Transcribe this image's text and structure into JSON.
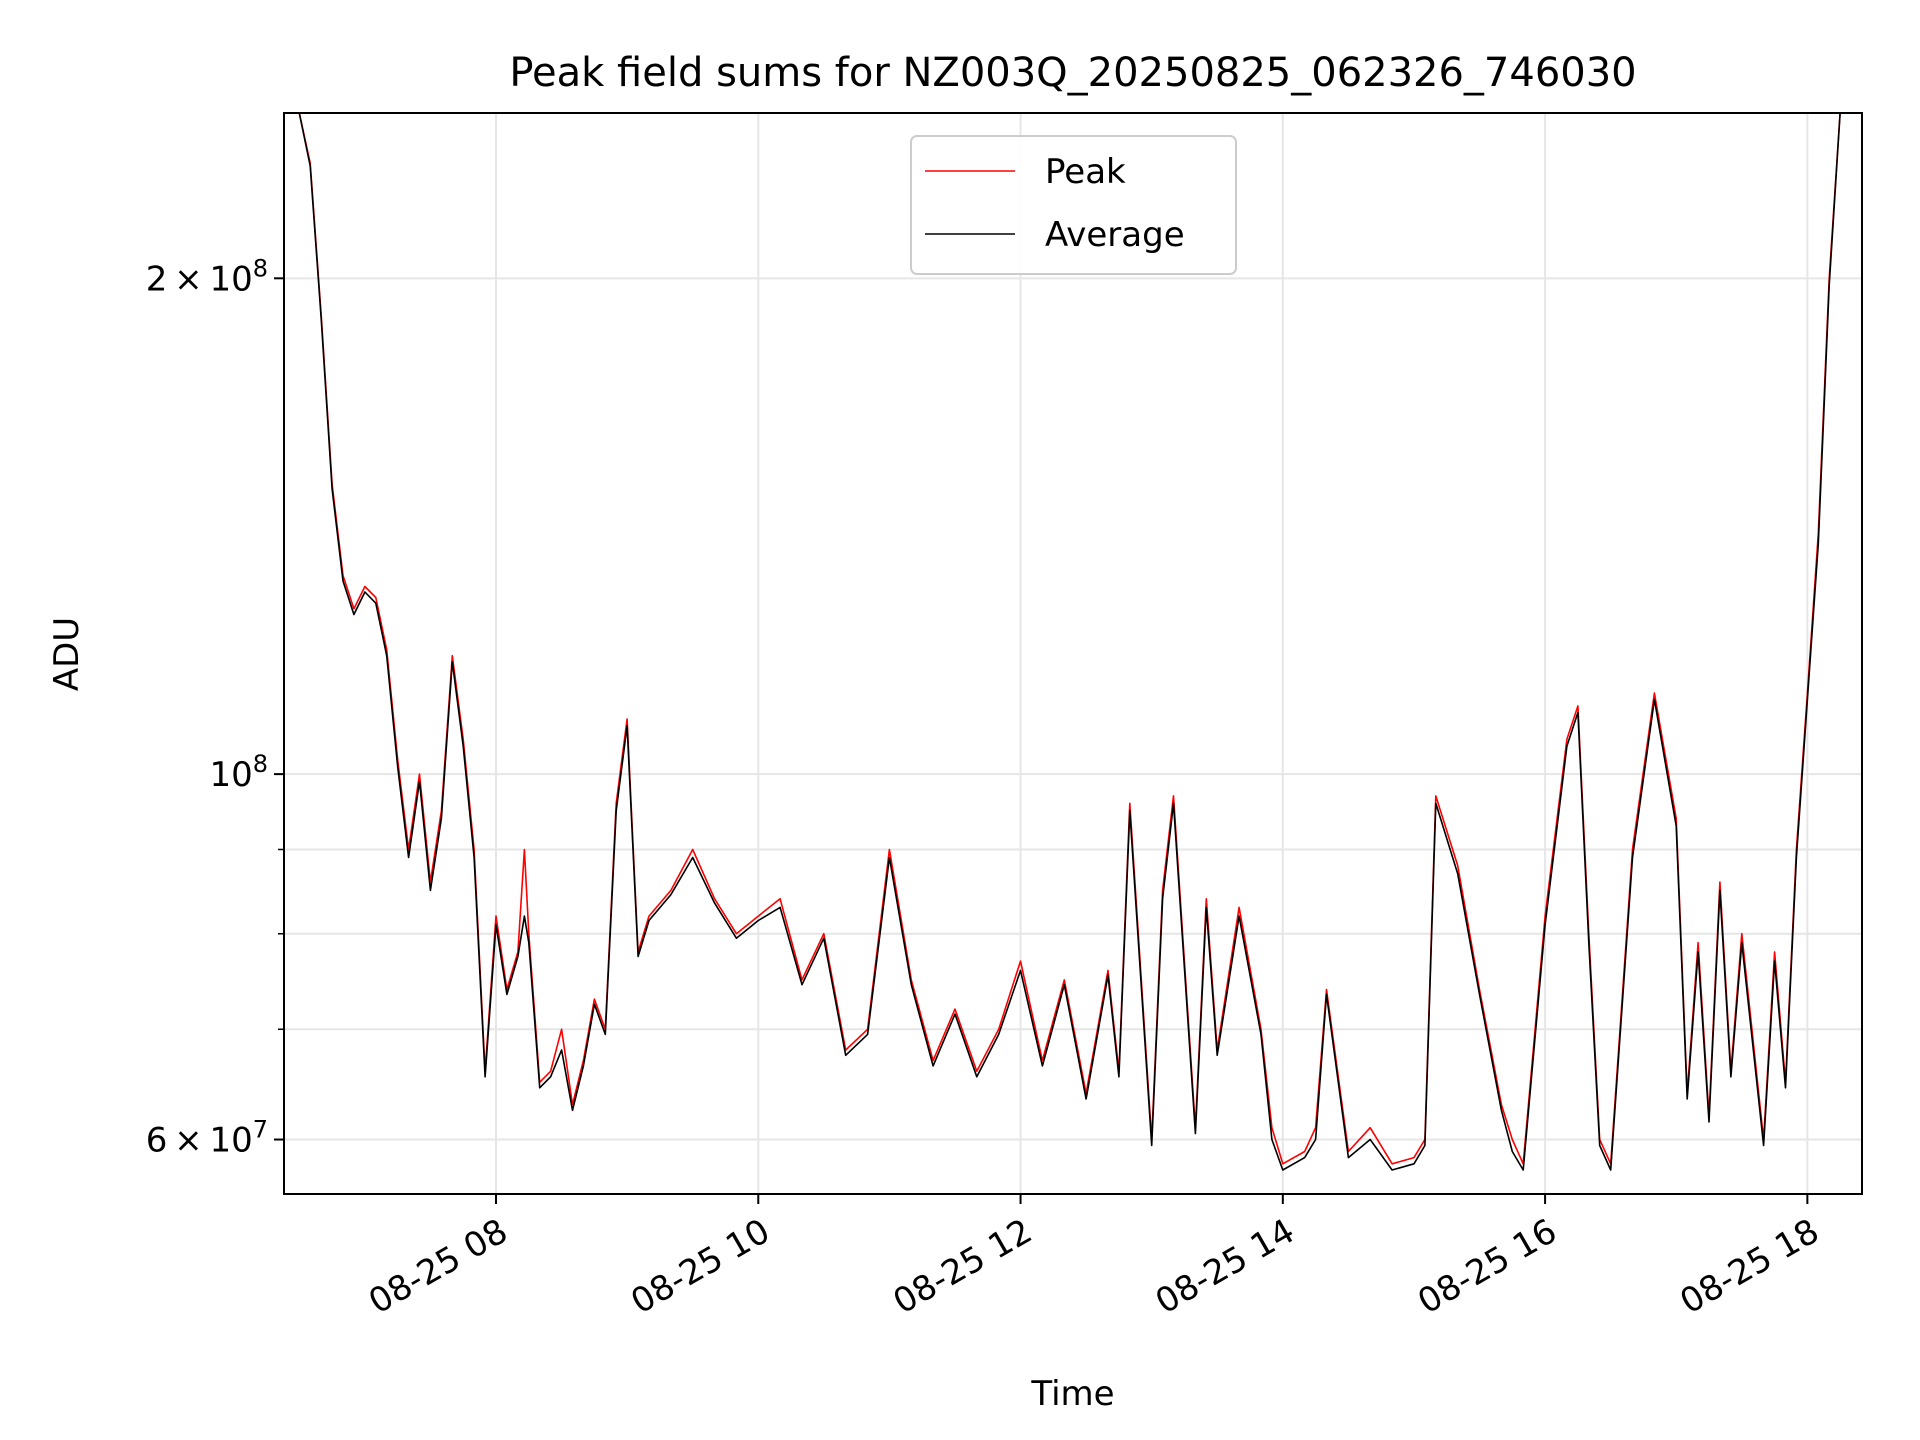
{
  "chart_data": {
    "type": "line",
    "title": "Peak field sums for NZ003Q_20250825_062326_746030",
    "xlabel": "Time",
    "ylabel": "ADU",
    "y_scale": "log",
    "ylim": [
      55600000,
      252000000
    ],
    "xlim": [
      "2025-08-25 06:23",
      "2025-08-25 18:25"
    ],
    "grid": true,
    "legend_position": "top-center",
    "x_ticks": [
      {
        "value": "2025-08-25 08:00",
        "label": "08-25 08"
      },
      {
        "value": "2025-08-25 10:00",
        "label": "08-25 10"
      },
      {
        "value": "2025-08-25 12:00",
        "label": "08-25 12"
      },
      {
        "value": "2025-08-25 14:00",
        "label": "08-25 14"
      },
      {
        "value": "2025-08-25 16:00",
        "label": "08-25 16"
      },
      {
        "value": "2025-08-25 18:00",
        "label": "08-25 18"
      }
    ],
    "y_major_ticks": [
      {
        "value": 60000000,
        "base": "6",
        "exp": "7"
      },
      {
        "value": 100000000,
        "base": "",
        "exp": "8"
      },
      {
        "value": 200000000,
        "base": "2",
        "exp": "8"
      }
    ],
    "y_minor_ticks": [
      70000000,
      80000000,
      90000000
    ],
    "series": [
      {
        "name": "Peak",
        "color": "#ff0000",
        "x": [
          "2025-08-25 06:30",
          "2025-08-25 06:35",
          "2025-08-25 06:40",
          "2025-08-25 06:45",
          "2025-08-25 06:50",
          "2025-08-25 06:55",
          "2025-08-25 07:00",
          "2025-08-25 07:05",
          "2025-08-25 07:10",
          "2025-08-25 07:15",
          "2025-08-25 07:20",
          "2025-08-25 07:25",
          "2025-08-25 07:30",
          "2025-08-25 07:35",
          "2025-08-25 07:40",
          "2025-08-25 07:45",
          "2025-08-25 07:50",
          "2025-08-25 07:55",
          "2025-08-25 08:00",
          "2025-08-25 08:05",
          "2025-08-25 08:10",
          "2025-08-25 08:13",
          "2025-08-25 08:15",
          "2025-08-25 08:20",
          "2025-08-25 08:25",
          "2025-08-25 08:30",
          "2025-08-25 08:35",
          "2025-08-25 08:40",
          "2025-08-25 08:45",
          "2025-08-25 08:50",
          "2025-08-25 08:55",
          "2025-08-25 09:00",
          "2025-08-25 09:05",
          "2025-08-25 09:10",
          "2025-08-25 09:20",
          "2025-08-25 09:30",
          "2025-08-25 09:40",
          "2025-08-25 09:50",
          "2025-08-25 10:00",
          "2025-08-25 10:10",
          "2025-08-25 10:20",
          "2025-08-25 10:30",
          "2025-08-25 10:40",
          "2025-08-25 10:50",
          "2025-08-25 11:00",
          "2025-08-25 11:10",
          "2025-08-25 11:20",
          "2025-08-25 11:30",
          "2025-08-25 11:40",
          "2025-08-25 11:50",
          "2025-08-25 12:00",
          "2025-08-25 12:10",
          "2025-08-25 12:20",
          "2025-08-25 12:30",
          "2025-08-25 12:40",
          "2025-08-25 12:45",
          "2025-08-25 12:50",
          "2025-08-25 13:00",
          "2025-08-25 13:05",
          "2025-08-25 13:10",
          "2025-08-25 13:20",
          "2025-08-25 13:25",
          "2025-08-25 13:30",
          "2025-08-25 13:40",
          "2025-08-25 13:50",
          "2025-08-25 13:55",
          "2025-08-25 14:00",
          "2025-08-25 14:10",
          "2025-08-25 14:15",
          "2025-08-25 14:20",
          "2025-08-25 14:30",
          "2025-08-25 14:40",
          "2025-08-25 14:50",
          "2025-08-25 15:00",
          "2025-08-25 15:05",
          "2025-08-25 15:10",
          "2025-08-25 15:20",
          "2025-08-25 15:30",
          "2025-08-25 15:40",
          "2025-08-25 15:45",
          "2025-08-25 15:50",
          "2025-08-25 16:00",
          "2025-08-25 16:10",
          "2025-08-25 16:15",
          "2025-08-25 16:20",
          "2025-08-25 16:25",
          "2025-08-25 16:30",
          "2025-08-25 16:40",
          "2025-08-25 16:50",
          "2025-08-25 17:00",
          "2025-08-25 17:05",
          "2025-08-25 17:10",
          "2025-08-25 17:15",
          "2025-08-25 17:20",
          "2025-08-25 17:25",
          "2025-08-25 17:30",
          "2025-08-25 17:40",
          "2025-08-25 17:45",
          "2025-08-25 17:50",
          "2025-08-25 17:55",
          "2025-08-25 18:00",
          "2025-08-25 18:05",
          "2025-08-25 18:10",
          "2025-08-25 18:15"
        ],
        "y": [
          252000000,
          235000000,
          190000000,
          150000000,
          132000000,
          126000000,
          130000000,
          128000000,
          119000000,
          102000000,
          90000000,
          100000000,
          86000000,
          95000000,
          118000000,
          105000000,
          90000000,
          66000000,
          82000000,
          74000000,
          78000000,
          90000000,
          80000000,
          65000000,
          66000000,
          70000000,
          63000000,
          67000000,
          73000000,
          70000000,
          96000000,
          108000000,
          78000000,
          82000000,
          85000000,
          90000000,
          84000000,
          80000000,
          82000000,
          84000000,
          75000000,
          80000000,
          68000000,
          70000000,
          90000000,
          75000000,
          67000000,
          72000000,
          66000000,
          70000000,
          77000000,
          67000000,
          75000000,
          64000000,
          76000000,
          66000000,
          96000000,
          60000000,
          85000000,
          97000000,
          61000000,
          84000000,
          68000000,
          83000000,
          70000000,
          61000000,
          58000000,
          59000000,
          61000000,
          74000000,
          59000000,
          61000000,
          58000000,
          58500000,
          60000000,
          97000000,
          88000000,
          74000000,
          63000000,
          60000000,
          58000000,
          82000000,
          105000000,
          110000000,
          80000000,
          60000000,
          58000000,
          90000000,
          112000000,
          94000000,
          64000000,
          79000000,
          62000000,
          86000000,
          66000000,
          80000000,
          60000000,
          78000000,
          65000000,
          90000000,
          112000000,
          140000000,
          200000000,
          252000000
        ]
      },
      {
        "name": "Average",
        "color": "#000000",
        "x": [
          "2025-08-25 06:30",
          "2025-08-25 06:35",
          "2025-08-25 06:40",
          "2025-08-25 06:45",
          "2025-08-25 06:50",
          "2025-08-25 06:55",
          "2025-08-25 07:00",
          "2025-08-25 07:05",
          "2025-08-25 07:10",
          "2025-08-25 07:15",
          "2025-08-25 07:20",
          "2025-08-25 07:25",
          "2025-08-25 07:30",
          "2025-08-25 07:35",
          "2025-08-25 07:40",
          "2025-08-25 07:45",
          "2025-08-25 07:50",
          "2025-08-25 07:55",
          "2025-08-25 08:00",
          "2025-08-25 08:05",
          "2025-08-25 08:10",
          "2025-08-25 08:13",
          "2025-08-25 08:15",
          "2025-08-25 08:20",
          "2025-08-25 08:25",
          "2025-08-25 08:30",
          "2025-08-25 08:35",
          "2025-08-25 08:40",
          "2025-08-25 08:45",
          "2025-08-25 08:50",
          "2025-08-25 08:55",
          "2025-08-25 09:00",
          "2025-08-25 09:05",
          "2025-08-25 09:10",
          "2025-08-25 09:20",
          "2025-08-25 09:30",
          "2025-08-25 09:40",
          "2025-08-25 09:50",
          "2025-08-25 10:00",
          "2025-08-25 10:10",
          "2025-08-25 10:20",
          "2025-08-25 10:30",
          "2025-08-25 10:40",
          "2025-08-25 10:50",
          "2025-08-25 11:00",
          "2025-08-25 11:10",
          "2025-08-25 11:20",
          "2025-08-25 11:30",
          "2025-08-25 11:40",
          "2025-08-25 11:50",
          "2025-08-25 12:00",
          "2025-08-25 12:10",
          "2025-08-25 12:20",
          "2025-08-25 12:30",
          "2025-08-25 12:40",
          "2025-08-25 12:45",
          "2025-08-25 12:50",
          "2025-08-25 13:00",
          "2025-08-25 13:05",
          "2025-08-25 13:10",
          "2025-08-25 13:20",
          "2025-08-25 13:25",
          "2025-08-25 13:30",
          "2025-08-25 13:40",
          "2025-08-25 13:50",
          "2025-08-25 13:55",
          "2025-08-25 14:00",
          "2025-08-25 14:10",
          "2025-08-25 14:15",
          "2025-08-25 14:20",
          "2025-08-25 14:30",
          "2025-08-25 14:40",
          "2025-08-25 14:50",
          "2025-08-25 15:00",
          "2025-08-25 15:05",
          "2025-08-25 15:10",
          "2025-08-25 15:20",
          "2025-08-25 15:30",
          "2025-08-25 15:40",
          "2025-08-25 15:45",
          "2025-08-25 15:50",
          "2025-08-25 16:00",
          "2025-08-25 16:10",
          "2025-08-25 16:15",
          "2025-08-25 16:20",
          "2025-08-25 16:25",
          "2025-08-25 16:30",
          "2025-08-25 16:40",
          "2025-08-25 16:50",
          "2025-08-25 17:00",
          "2025-08-25 17:05",
          "2025-08-25 17:10",
          "2025-08-25 17:15",
          "2025-08-25 17:20",
          "2025-08-25 17:25",
          "2025-08-25 17:30",
          "2025-08-25 17:40",
          "2025-08-25 17:45",
          "2025-08-25 17:50",
          "2025-08-25 17:55",
          "2025-08-25 18:00",
          "2025-08-25 18:05",
          "2025-08-25 18:10",
          "2025-08-25 18:15"
        ],
        "y": [
          252000000,
          234000000,
          189000000,
          149000000,
          131000000,
          125000000,
          129000000,
          127000000,
          118000000,
          101000000,
          89000000,
          99000000,
          85000000,
          94000000,
          117000000,
          104000000,
          89000000,
          65500000,
          81000000,
          73500000,
          77500000,
          82000000,
          79000000,
          64500000,
          65500000,
          68000000,
          62500000,
          66500000,
          72500000,
          69500000,
          95000000,
          107000000,
          77500000,
          81500000,
          84500000,
          89000000,
          83500000,
          79500000,
          81500000,
          83000000,
          74500000,
          79500000,
          67500000,
          69500000,
          89000000,
          74500000,
          66500000,
          71500000,
          65500000,
          69500000,
          76000000,
          66500000,
          74500000,
          63500000,
          75500000,
          65500000,
          95000000,
          59500000,
          84000000,
          96000000,
          60500000,
          83000000,
          67500000,
          82000000,
          69500000,
          60000000,
          57500000,
          58500000,
          60000000,
          73500000,
          58500000,
          60000000,
          57500000,
          58000000,
          59500000,
          96000000,
          87000000,
          73500000,
          62500000,
          59000000,
          57500000,
          81000000,
          104000000,
          109000000,
          79000000,
          59500000,
          57500000,
          89000000,
          111000000,
          93000000,
          63500000,
          78000000,
          61500000,
          85000000,
          65500000,
          79000000,
          59500000,
          77000000,
          64500000,
          89000000,
          111000000,
          138000000,
          198000000,
          252000000
        ]
      }
    ]
  }
}
